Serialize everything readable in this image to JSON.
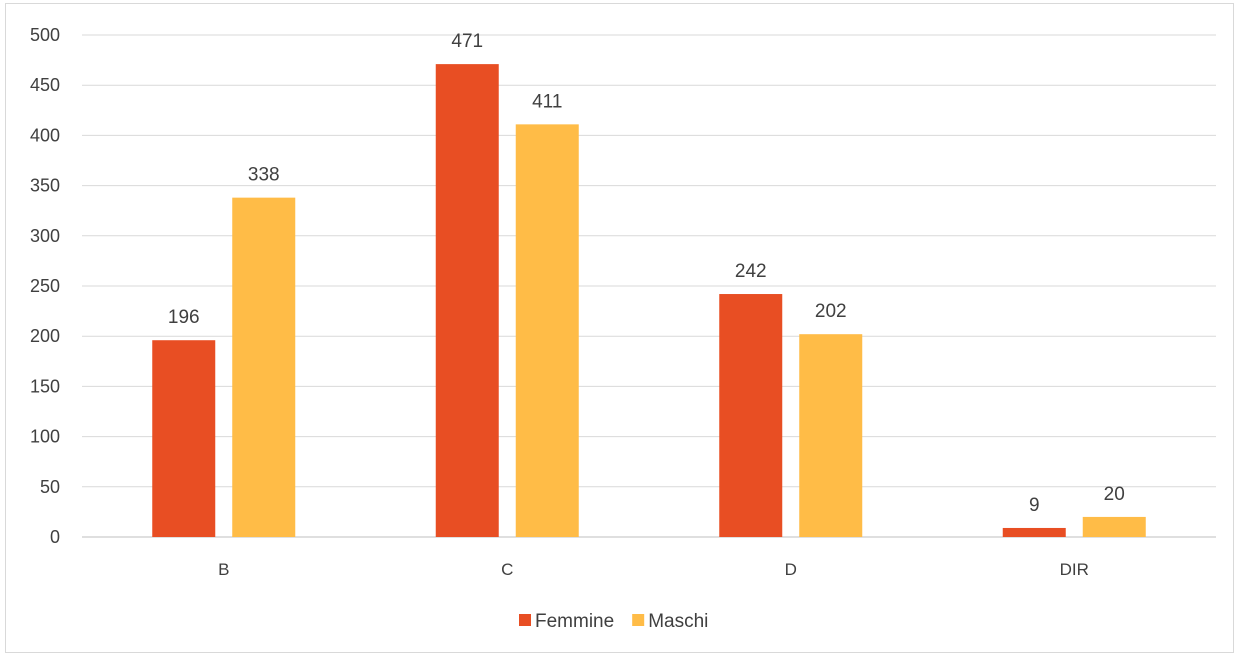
{
  "chart_data": {
    "type": "bar",
    "categories": [
      "B",
      "C",
      "D",
      "DIR"
    ],
    "series": [
      {
        "name": "Femmine",
        "values": [
          196,
          471,
          242,
          9
        ],
        "color": "#E84E23"
      },
      {
        "name": "Maschi",
        "values": [
          338,
          411,
          202,
          20
        ],
        "color": "#FFBC47"
      }
    ],
    "ylim": [
      0,
      500
    ],
    "yticks": [
      0,
      50,
      100,
      150,
      200,
      250,
      300,
      350,
      400,
      450,
      500
    ],
    "grid": true,
    "legend_position": "bottom",
    "data_labels": true,
    "title": "",
    "xlabel": "",
    "ylabel": ""
  }
}
